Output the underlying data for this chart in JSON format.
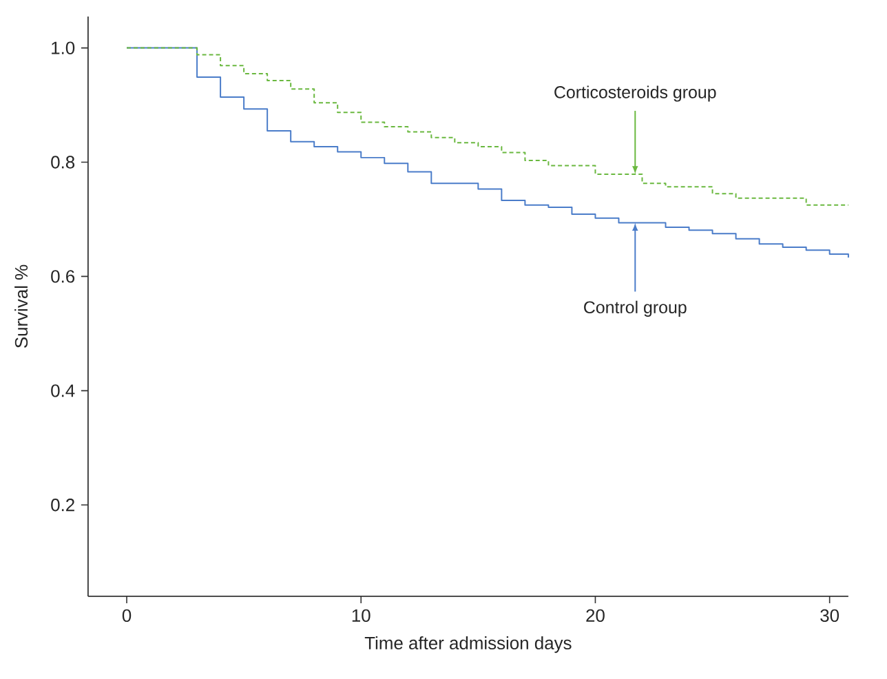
{
  "chart_data": {
    "type": "step",
    "xlabel": "Time after admission days",
    "ylabel": "Survival %",
    "xlim": [
      -1.65,
      30.8
    ],
    "ylim": [
      0.04,
      1.055
    ],
    "xticks": [
      0,
      10,
      20,
      30
    ],
    "yticks": [
      0.2,
      0.4,
      0.6,
      0.8,
      {
        "value": 1,
        "label": "1.0"
      }
    ],
    "series": [
      {
        "color": "#4a7cc9",
        "line_style": "solid",
        "x": [
          0,
          3,
          4,
          5,
          6,
          7,
          8,
          9,
          10,
          11,
          12,
          13,
          15,
          16,
          17,
          18,
          19,
          20,
          21,
          23,
          24,
          25,
          26,
          27,
          28,
          29,
          30,
          30.8
        ],
        "values": [
          1.0,
          0.949,
          0.914,
          0.893,
          0.855,
          0.836,
          0.827,
          0.818,
          0.808,
          0.798,
          0.783,
          0.763,
          0.753,
          0.733,
          0.725,
          0.721,
          0.709,
          0.702,
          0.694,
          0.686,
          0.681,
          0.675,
          0.666,
          0.657,
          0.651,
          0.646,
          0.639,
          0.633
        ]
      },
      {
        "color": "#6ab83f",
        "line_style": "dashed",
        "x": [
          0,
          3,
          4,
          5,
          6,
          7,
          8,
          9,
          10,
          11,
          12,
          13,
          14,
          15,
          16,
          17,
          18,
          20,
          22,
          23,
          25,
          26,
          29,
          30.8
        ],
        "values": [
          1.0,
          0.988,
          0.969,
          0.955,
          0.943,
          0.928,
          0.904,
          0.887,
          0.87,
          0.862,
          0.853,
          0.843,
          0.834,
          0.827,
          0.817,
          0.803,
          0.794,
          0.779,
          0.763,
          0.757,
          0.745,
          0.737,
          0.725,
          0.725
        ]
      }
    ],
    "annotations": [
      {
        "text": "Control group",
        "x": 21.7,
        "y": 0.694
      },
      {
        "text": "Corticosteroids group",
        "x": 21.7,
        "y": 0.779
      }
    ],
    "grid": false,
    "marker": "none"
  }
}
